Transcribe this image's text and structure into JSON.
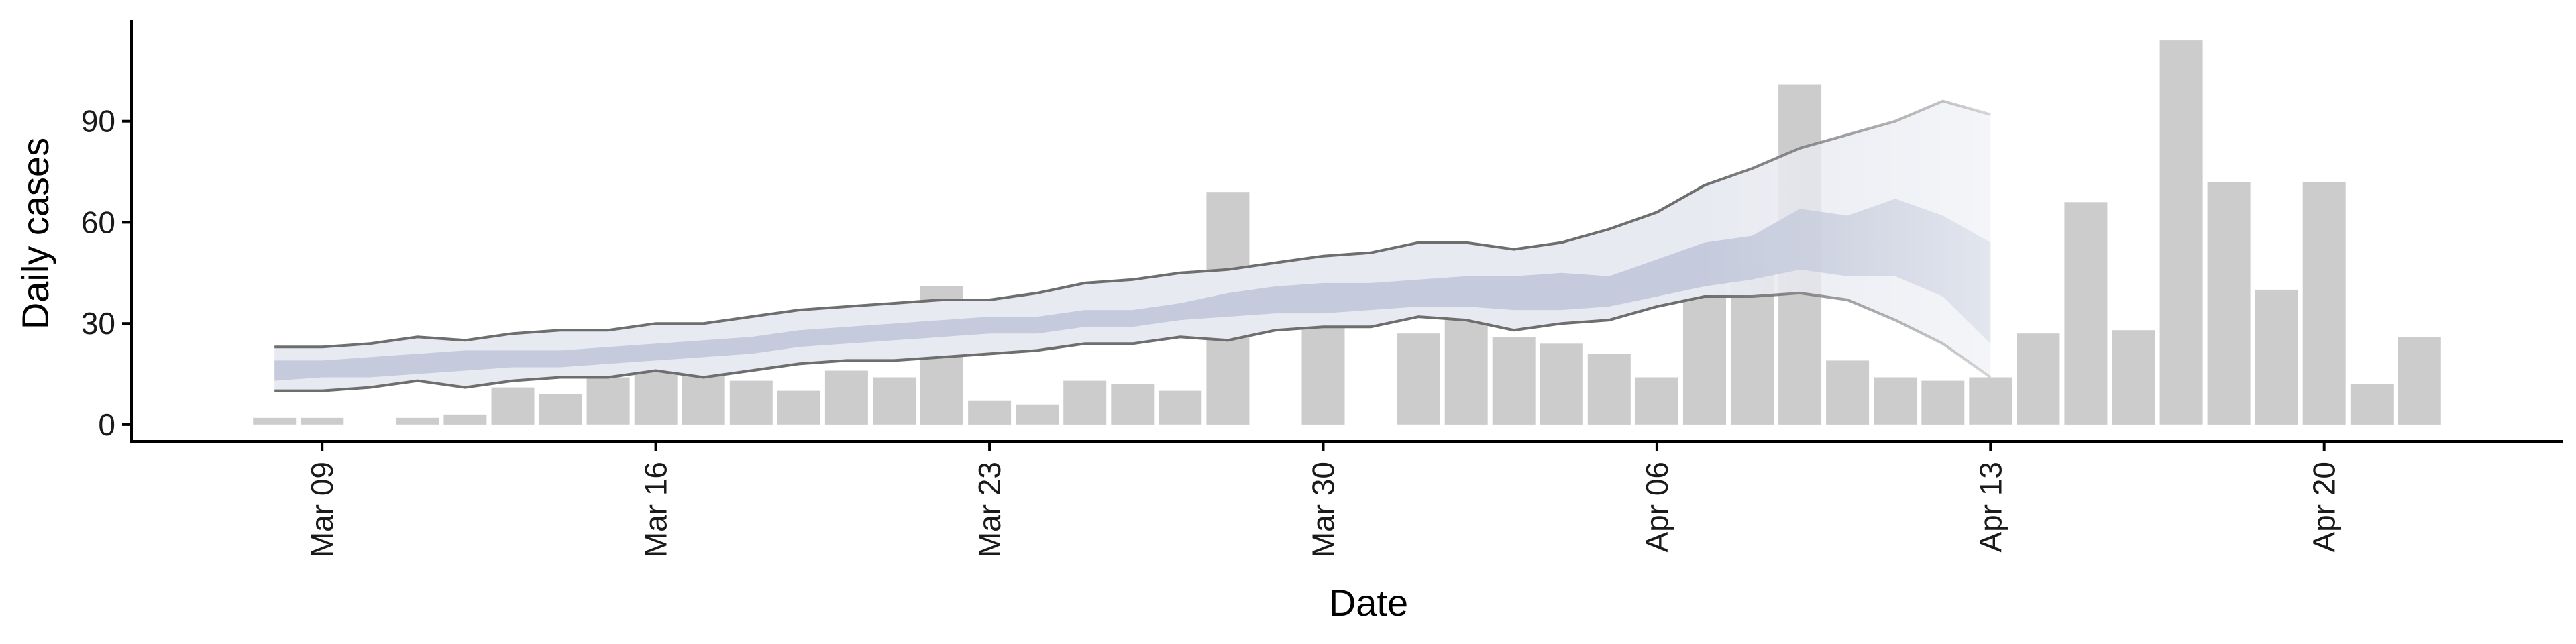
{
  "chart_data": {
    "type": "bar",
    "xlabel": "Date",
    "ylabel": "Daily cases",
    "x_ticks": [
      "Mar 09",
      "Mar 16",
      "Mar 23",
      "Mar 30",
      "Apr 06",
      "Apr 13",
      "Apr 20"
    ],
    "y_ticks": [
      "0",
      "30",
      "60",
      "90"
    ],
    "ylim": [
      -5,
      120
    ],
    "xlim": [
      "2020-03-05",
      "2020-04-25"
    ],
    "grid": false,
    "legend": "none",
    "colors": {
      "bars": "#cccccc",
      "bounds_lines": "#6e6e6e",
      "band_inner": "#c5cbdc",
      "band_outer": "#e8eaf1",
      "axis": "#000000"
    },
    "series": [
      {
        "type": "bar",
        "x": [
          "2020-03-08",
          "2020-03-09",
          "2020-03-11",
          "2020-03-12",
          "2020-03-13",
          "2020-03-14",
          "2020-03-15",
          "2020-03-16",
          "2020-03-17",
          "2020-03-18",
          "2020-03-19",
          "2020-03-20",
          "2020-03-21",
          "2020-03-22",
          "2020-03-23",
          "2020-03-24",
          "2020-03-25",
          "2020-03-26",
          "2020-03-27",
          "2020-03-28",
          "2020-03-30",
          "2020-04-01",
          "2020-04-02",
          "2020-04-03",
          "2020-04-04",
          "2020-04-05",
          "2020-04-06",
          "2020-04-07",
          "2020-04-08",
          "2020-04-09",
          "2020-04-10",
          "2020-04-11",
          "2020-04-12",
          "2020-04-13",
          "2020-04-14",
          "2020-04-15",
          "2020-04-16",
          "2020-04-17",
          "2020-04-18",
          "2020-04-19",
          "2020-04-20",
          "2020-04-21",
          "2020-04-22"
        ],
        "values": [
          2,
          2,
          2,
          3,
          11,
          9,
          14,
          17,
          23,
          13,
          10,
          16,
          14,
          41,
          7,
          6,
          13,
          12,
          10,
          69,
          41,
          27,
          37,
          26,
          24,
          21,
          14,
          49,
          47,
          101,
          19,
          14,
          13,
          14,
          27,
          66,
          28,
          114,
          72,
          40,
          72,
          12,
          26
        ]
      },
      {
        "type": "line",
        "x": [
          "2020-03-08",
          "2020-03-09",
          "2020-03-10",
          "2020-03-11",
          "2020-03-12",
          "2020-03-13",
          "2020-03-14",
          "2020-03-15",
          "2020-03-16",
          "2020-03-17",
          "2020-03-18",
          "2020-03-19",
          "2020-03-20",
          "2020-03-21",
          "2020-03-22",
          "2020-03-23",
          "2020-03-24",
          "2020-03-25",
          "2020-03-26",
          "2020-03-27",
          "2020-03-28",
          "2020-03-29",
          "2020-03-30",
          "2020-03-31",
          "2020-04-01",
          "2020-04-02",
          "2020-04-03",
          "2020-04-04",
          "2020-04-05",
          "2020-04-06",
          "2020-04-07",
          "2020-04-08",
          "2020-04-09",
          "2020-04-10",
          "2020-04-11",
          "2020-04-12",
          "2020-04-13"
        ],
        "values": [
          23,
          23,
          24,
          26,
          25,
          27,
          28,
          28,
          30,
          30,
          32,
          34,
          35,
          36,
          37,
          37,
          39,
          42,
          43,
          45,
          46,
          48,
          50,
          51,
          54,
          54,
          52,
          54,
          58,
          63,
          71,
          76,
          82,
          86,
          90,
          96,
          92
        ]
      },
      {
        "type": "line",
        "x": [
          "2020-03-08",
          "2020-03-09",
          "2020-03-10",
          "2020-03-11",
          "2020-03-12",
          "2020-03-13",
          "2020-03-14",
          "2020-03-15",
          "2020-03-16",
          "2020-03-17",
          "2020-03-18",
          "2020-03-19",
          "2020-03-20",
          "2020-03-21",
          "2020-03-22",
          "2020-03-23",
          "2020-03-24",
          "2020-03-25",
          "2020-03-26",
          "2020-03-27",
          "2020-03-28",
          "2020-03-29",
          "2020-03-30",
          "2020-03-31",
          "2020-04-01",
          "2020-04-02",
          "2020-04-03",
          "2020-04-04",
          "2020-04-05",
          "2020-04-06",
          "2020-04-07",
          "2020-04-08",
          "2020-04-09",
          "2020-04-10",
          "2020-04-11",
          "2020-04-12",
          "2020-04-13"
        ],
        "values": [
          10,
          10,
          11,
          13,
          11,
          13,
          14,
          14,
          16,
          14,
          16,
          18,
          19,
          19,
          20,
          21,
          22,
          24,
          24,
          26,
          25,
          28,
          29,
          29,
          32,
          31,
          28,
          30,
          31,
          35,
          38,
          38,
          39,
          37,
          31,
          24,
          14
        ]
      },
      {
        "type": "area",
        "x": [
          "2020-03-08",
          "2020-03-09",
          "2020-03-10",
          "2020-03-11",
          "2020-03-12",
          "2020-03-13",
          "2020-03-14",
          "2020-03-15",
          "2020-03-16",
          "2020-03-17",
          "2020-03-18",
          "2020-03-19",
          "2020-03-20",
          "2020-03-21",
          "2020-03-22",
          "2020-03-23",
          "2020-03-24",
          "2020-03-25",
          "2020-03-26",
          "2020-03-27",
          "2020-03-28",
          "2020-03-29",
          "2020-03-30",
          "2020-03-31",
          "2020-04-01",
          "2020-04-02",
          "2020-04-03",
          "2020-04-04",
          "2020-04-05",
          "2020-04-06",
          "2020-04-07",
          "2020-04-08",
          "2020-04-09",
          "2020-04-10",
          "2020-04-11",
          "2020-04-12",
          "2020-04-13"
        ],
        "low": [
          13,
          14,
          14,
          15,
          16,
          17,
          17,
          18,
          19,
          20,
          21,
          23,
          24,
          25,
          26,
          27,
          27,
          29,
          29,
          31,
          32,
          33,
          33,
          34,
          35,
          35,
          34,
          34,
          35,
          38,
          41,
          43,
          46,
          44,
          44,
          38,
          24
        ],
        "high": [
          19,
          19,
          20,
          21,
          22,
          22,
          22,
          23,
          24,
          25,
          26,
          28,
          29,
          30,
          31,
          32,
          32,
          34,
          34,
          36,
          39,
          41,
          42,
          42,
          43,
          44,
          44,
          45,
          44,
          49,
          54,
          56,
          64,
          62,
          67,
          62,
          54
        ]
      }
    ]
  }
}
